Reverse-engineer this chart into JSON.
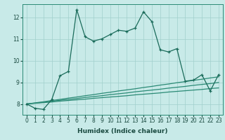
{
  "xlabel": "Humidex (Indice chaleur)",
  "x": [
    0,
    1,
    2,
    3,
    4,
    5,
    6,
    7,
    8,
    9,
    10,
    11,
    12,
    13,
    14,
    15,
    16,
    17,
    18,
    19,
    20,
    21,
    22,
    23
  ],
  "y_main": [
    8.0,
    7.8,
    7.75,
    8.2,
    9.3,
    9.5,
    12.35,
    11.1,
    10.9,
    11.0,
    11.2,
    11.4,
    11.35,
    11.5,
    12.25,
    11.8,
    10.5,
    10.4,
    10.55,
    9.05,
    9.1,
    9.35,
    8.6,
    9.35
  ],
  "y_lin1": [
    8.0,
    8.05,
    8.1,
    8.16,
    8.21,
    8.27,
    8.32,
    8.38,
    8.43,
    8.49,
    8.54,
    8.6,
    8.65,
    8.7,
    8.76,
    8.81,
    8.87,
    8.92,
    8.98,
    9.03,
    9.09,
    9.14,
    9.2,
    9.25
  ],
  "y_lin2": [
    8.0,
    8.04,
    8.08,
    8.13,
    8.17,
    8.21,
    8.25,
    8.3,
    8.34,
    8.38,
    8.43,
    8.47,
    8.51,
    8.56,
    8.6,
    8.64,
    8.68,
    8.73,
    8.77,
    8.81,
    8.86,
    8.9,
    8.94,
    8.99
  ],
  "y_lin3": [
    8.0,
    8.03,
    8.06,
    8.09,
    8.13,
    8.16,
    8.19,
    8.22,
    8.26,
    8.29,
    8.32,
    8.35,
    8.38,
    8.42,
    8.45,
    8.48,
    8.51,
    8.55,
    8.58,
    8.61,
    8.64,
    8.67,
    8.71,
    8.74
  ],
  "color_main": "#1a6b5a",
  "color_linear": "#2a8a75",
  "bg_color": "#c8eae8",
  "grid_color": "#a0d0cc",
  "ylim": [
    7.5,
    12.6
  ],
  "yticks": [
    8,
    9,
    10,
    11,
    12
  ],
  "xticks": [
    0,
    1,
    2,
    3,
    4,
    5,
    6,
    7,
    8,
    9,
    10,
    11,
    12,
    13,
    14,
    15,
    16,
    17,
    18,
    19,
    20,
    21,
    22,
    23
  ]
}
